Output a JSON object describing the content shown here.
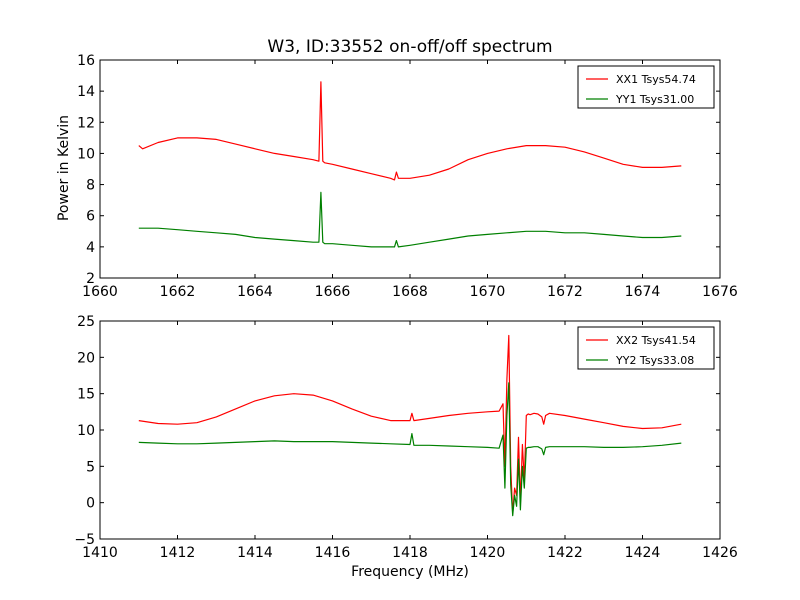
{
  "figure": {
    "title": "W3, ID:33552 on-off/off spectrum",
    "ylabel": "Power in Kelvin",
    "xlabel": "Frequency (MHz)"
  },
  "chart_data": [
    {
      "type": "line",
      "title": "W3, ID:33552 on-off/off spectrum",
      "xlabel": "",
      "ylabel": "Power in Kelvin",
      "xlim": [
        1660,
        1676
      ],
      "ylim": [
        2,
        16
      ],
      "xticks": [
        "1660",
        "1662",
        "1664",
        "1666",
        "1668",
        "1670",
        "1672",
        "1674",
        "1676"
      ],
      "yticks": [
        "2",
        "4",
        "6",
        "8",
        "10",
        "12",
        "14",
        "16"
      ],
      "grid": false,
      "legend_position": "top-right",
      "series": [
        {
          "name": "XX1 Tsys54.74",
          "color": "#ff0000",
          "x": [
            1661.0,
            1661.1,
            1661.5,
            1662.0,
            1662.5,
            1663.0,
            1663.5,
            1664.0,
            1664.5,
            1665.0,
            1665.5,
            1665.65,
            1665.7,
            1665.75,
            1665.8,
            1666.0,
            1666.5,
            1667.0,
            1667.5,
            1667.6,
            1667.65,
            1667.7,
            1668.0,
            1668.5,
            1669.0,
            1669.5,
            1670.0,
            1670.5,
            1671.0,
            1671.5,
            1672.0,
            1672.5,
            1673.0,
            1673.5,
            1674.0,
            1674.5,
            1675.0
          ],
          "y": [
            10.5,
            10.3,
            10.7,
            11.0,
            11.0,
            10.9,
            10.6,
            10.3,
            10.0,
            9.8,
            9.6,
            9.5,
            14.6,
            9.5,
            9.4,
            9.3,
            9.0,
            8.7,
            8.4,
            8.3,
            8.8,
            8.4,
            8.4,
            8.6,
            9.0,
            9.6,
            10.0,
            10.3,
            10.5,
            10.5,
            10.4,
            10.1,
            9.7,
            9.3,
            9.1,
            9.1,
            9.2
          ]
        },
        {
          "name": "YY1 Tsys31.00",
          "color": "#008000",
          "x": [
            1661.0,
            1661.5,
            1662.0,
            1662.5,
            1663.0,
            1663.5,
            1664.0,
            1664.5,
            1665.0,
            1665.5,
            1665.65,
            1665.7,
            1665.75,
            1665.8,
            1666.0,
            1666.5,
            1667.0,
            1667.5,
            1667.6,
            1667.65,
            1667.7,
            1668.0,
            1668.5,
            1669.0,
            1669.5,
            1670.0,
            1670.5,
            1671.0,
            1671.5,
            1672.0,
            1672.5,
            1673.0,
            1673.5,
            1674.0,
            1674.5,
            1675.0
          ],
          "y": [
            5.2,
            5.2,
            5.1,
            5.0,
            4.9,
            4.8,
            4.6,
            4.5,
            4.4,
            4.3,
            4.3,
            7.5,
            4.3,
            4.2,
            4.2,
            4.1,
            4.0,
            4.0,
            4.0,
            4.4,
            4.0,
            4.1,
            4.3,
            4.5,
            4.7,
            4.8,
            4.9,
            5.0,
            5.0,
            4.9,
            4.9,
            4.8,
            4.7,
            4.6,
            4.6,
            4.7
          ]
        }
      ]
    },
    {
      "type": "line",
      "title": "",
      "xlabel": "Frequency (MHz)",
      "ylabel": "",
      "xlim": [
        1410,
        1426
      ],
      "ylim": [
        -5,
        25
      ],
      "xticks": [
        "1410",
        "1412",
        "1414",
        "1416",
        "1418",
        "1420",
        "1422",
        "1424",
        "1426"
      ],
      "yticks": [
        "−5",
        "0",
        "5",
        "10",
        "15",
        "20",
        "25"
      ],
      "grid": false,
      "legend_position": "top-right",
      "series": [
        {
          "name": "XX2 Tsys41.54",
          "color": "#ff0000",
          "x": [
            1411.0,
            1411.5,
            1412.0,
            1412.5,
            1413.0,
            1413.5,
            1414.0,
            1414.5,
            1415.0,
            1415.5,
            1416.0,
            1416.5,
            1417.0,
            1417.5,
            1418.0,
            1418.05,
            1418.1,
            1418.5,
            1419.0,
            1419.5,
            1420.0,
            1420.3,
            1420.4,
            1420.45,
            1420.5,
            1420.55,
            1420.6,
            1420.65,
            1420.7,
            1420.75,
            1420.8,
            1420.85,
            1420.9,
            1420.95,
            1421.0,
            1421.05,
            1421.1,
            1421.2,
            1421.3,
            1421.4,
            1421.45,
            1421.5,
            1421.6,
            1422.0,
            1422.5,
            1423.0,
            1423.5,
            1424.0,
            1424.5,
            1425.0
          ],
          "y": [
            11.3,
            10.9,
            10.8,
            11.0,
            11.8,
            12.9,
            14.0,
            14.7,
            15.0,
            14.8,
            14.0,
            12.9,
            11.9,
            11.3,
            11.3,
            12.3,
            11.3,
            11.6,
            12.0,
            12.3,
            12.5,
            12.6,
            13.6,
            5.0,
            17.0,
            23.0,
            5.0,
            -1.5,
            2.0,
            1.0,
            9.0,
            0.0,
            8.0,
            3.0,
            12.0,
            12.2,
            12.1,
            12.3,
            12.2,
            11.8,
            10.8,
            12.0,
            12.3,
            12.0,
            11.5,
            11.0,
            10.5,
            10.2,
            10.3,
            10.8
          ]
        },
        {
          "name": "YY2 Tsys33.08",
          "color": "#008000",
          "x": [
            1411.0,
            1411.5,
            1412.0,
            1412.5,
            1413.0,
            1413.5,
            1414.0,
            1414.5,
            1415.0,
            1415.5,
            1416.0,
            1416.5,
            1417.0,
            1417.5,
            1418.0,
            1418.05,
            1418.1,
            1418.5,
            1419.0,
            1419.5,
            1420.0,
            1420.3,
            1420.4,
            1420.45,
            1420.5,
            1420.55,
            1420.6,
            1420.65,
            1420.7,
            1420.75,
            1420.8,
            1420.85,
            1420.9,
            1420.95,
            1421.0,
            1421.05,
            1421.1,
            1421.2,
            1421.3,
            1421.4,
            1421.45,
            1421.5,
            1421.6,
            1422.0,
            1422.5,
            1423.0,
            1423.5,
            1424.0,
            1424.5,
            1425.0
          ],
          "y": [
            8.3,
            8.2,
            8.1,
            8.1,
            8.2,
            8.3,
            8.4,
            8.5,
            8.4,
            8.4,
            8.4,
            8.3,
            8.2,
            8.1,
            8.0,
            9.5,
            7.9,
            7.9,
            7.8,
            7.7,
            7.6,
            7.5,
            9.3,
            2.0,
            12.0,
            16.5,
            2.5,
            -1.8,
            1.0,
            -0.5,
            6.0,
            -1.0,
            5.0,
            2.0,
            7.5,
            7.6,
            7.6,
            7.7,
            7.7,
            7.4,
            6.6,
            7.6,
            7.7,
            7.7,
            7.7,
            7.6,
            7.6,
            7.7,
            7.9,
            8.2
          ]
        }
      ]
    }
  ]
}
